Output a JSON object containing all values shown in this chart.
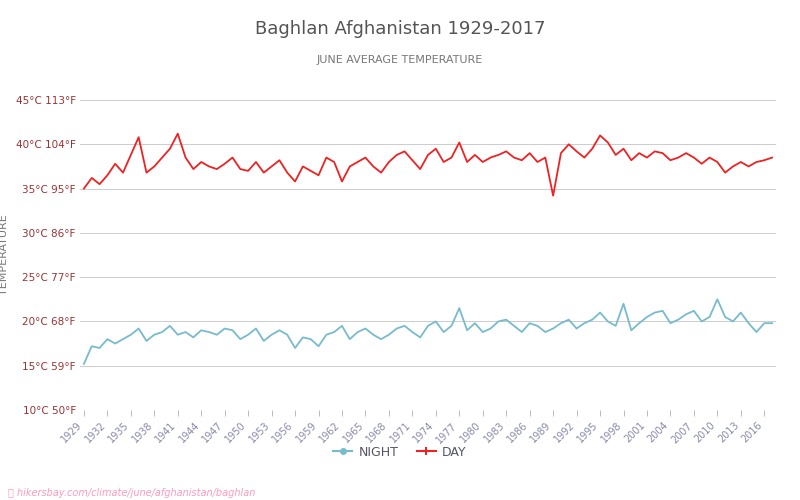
{
  "title": "Baghlan Afghanistan 1929-2017",
  "subtitle": "JUNE AVERAGE TEMPERATURE",
  "ylabel": "TEMPERATURE",
  "title_color": "#555555",
  "subtitle_color": "#777777",
  "ylabel_color": "#777777",
  "background_color": "#ffffff",
  "grid_color": "#cccccc",
  "tick_label_color": "#993333",
  "xticklabel_color": "#8888aa",
  "years": [
    1929,
    1930,
    1931,
    1932,
    1933,
    1934,
    1935,
    1936,
    1937,
    1938,
    1939,
    1940,
    1941,
    1942,
    1943,
    1944,
    1945,
    1946,
    1947,
    1948,
    1949,
    1950,
    1951,
    1952,
    1953,
    1954,
    1955,
    1956,
    1957,
    1958,
    1959,
    1960,
    1961,
    1962,
    1963,
    1964,
    1965,
    1966,
    1967,
    1968,
    1969,
    1970,
    1971,
    1972,
    1973,
    1974,
    1975,
    1976,
    1977,
    1978,
    1979,
    1980,
    1981,
    1982,
    1983,
    1984,
    1985,
    1986,
    1987,
    1988,
    1989,
    1990,
    1991,
    1992,
    1993,
    1994,
    1995,
    1996,
    1997,
    1998,
    1999,
    2000,
    2001,
    2002,
    2003,
    2004,
    2005,
    2006,
    2007,
    2008,
    2009,
    2010,
    2011,
    2012,
    2013,
    2014,
    2015,
    2016,
    2017
  ],
  "day_temps": [
    35.0,
    36.2,
    35.5,
    36.5,
    37.8,
    36.8,
    38.8,
    40.8,
    36.8,
    37.5,
    38.5,
    39.5,
    41.2,
    38.5,
    37.2,
    38.0,
    37.5,
    37.2,
    37.8,
    38.5,
    37.2,
    37.0,
    38.0,
    36.8,
    37.5,
    38.2,
    36.8,
    35.8,
    37.5,
    37.0,
    36.5,
    38.5,
    38.0,
    35.8,
    37.5,
    38.0,
    38.5,
    37.5,
    36.8,
    38.0,
    38.8,
    39.2,
    38.2,
    37.2,
    38.8,
    39.5,
    38.0,
    38.5,
    40.2,
    38.0,
    38.8,
    38.0,
    38.5,
    38.8,
    39.2,
    38.5,
    38.2,
    39.0,
    38.0,
    38.5,
    34.2,
    39.0,
    40.0,
    39.2,
    38.5,
    39.5,
    41.0,
    40.2,
    38.8,
    39.5,
    38.2,
    39.0,
    38.5,
    39.2,
    39.0,
    38.2,
    38.5,
    39.0,
    38.5,
    37.8,
    38.5,
    38.0,
    36.8,
    37.5,
    38.0,
    37.5,
    38.0,
    38.2,
    38.5
  ],
  "night_temps": [
    15.2,
    17.2,
    17.0,
    18.0,
    17.5,
    18.0,
    18.5,
    19.2,
    17.8,
    18.5,
    18.8,
    19.5,
    18.5,
    18.8,
    18.2,
    19.0,
    18.8,
    18.5,
    19.2,
    19.0,
    18.0,
    18.5,
    19.2,
    17.8,
    18.5,
    19.0,
    18.5,
    17.0,
    18.2,
    18.0,
    17.2,
    18.5,
    18.8,
    19.5,
    18.0,
    18.8,
    19.2,
    18.5,
    18.0,
    18.5,
    19.2,
    19.5,
    18.8,
    18.2,
    19.5,
    20.0,
    18.8,
    19.5,
    21.5,
    19.0,
    19.8,
    18.8,
    19.2,
    20.0,
    20.2,
    19.5,
    18.8,
    19.8,
    19.5,
    18.8,
    19.2,
    19.8,
    20.2,
    19.2,
    19.8,
    20.2,
    21.0,
    20.0,
    19.5,
    22.0,
    19.0,
    19.8,
    20.5,
    21.0,
    21.2,
    19.8,
    20.2,
    20.8,
    21.2,
    20.0,
    20.5,
    22.5,
    20.5,
    20.0,
    21.0,
    19.8,
    18.8,
    19.8,
    19.8
  ],
  "day_color": "#ee2222",
  "night_color": "#77bbcc",
  "ylim_min": 10,
  "ylim_max": 45,
  "yticks_celsius": [
    10,
    15,
    20,
    25,
    30,
    35,
    40,
    45
  ],
  "ytick_labels": [
    "10°C 50°F",
    "15°C 59°F",
    "20°C 68°F",
    "25°C 77°F",
    "30°C 86°F",
    "35°C 95°F",
    "40°C 104°F",
    "45°C 113°F"
  ],
  "xtick_years": [
    1929,
    1932,
    1935,
    1938,
    1941,
    1944,
    1947,
    1950,
    1953,
    1956,
    1959,
    1962,
    1965,
    1968,
    1971,
    1974,
    1977,
    1980,
    1983,
    1986,
    1989,
    1992,
    1995,
    1998,
    2001,
    2004,
    2007,
    2010,
    2013,
    2016
  ],
  "watermark": "hikersbay.com/climate/june/afghanistan/baghlan",
  "legend_night": "NIGHT",
  "legend_day": "DAY",
  "figwidth": 8.0,
  "figheight": 5.0,
  "dpi": 100
}
